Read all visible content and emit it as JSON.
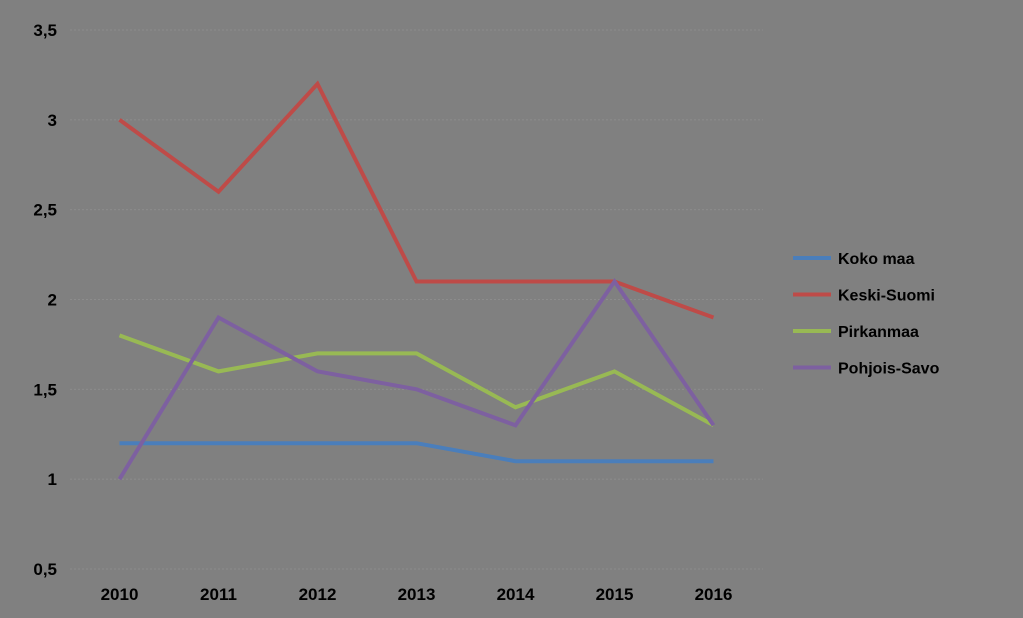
{
  "chart_data": {
    "type": "line",
    "title": "",
    "xlabel": "",
    "ylabel": "",
    "categories": [
      "2010",
      "2011",
      "2012",
      "2013",
      "2014",
      "2015",
      "2016"
    ],
    "ylim": [
      0.5,
      3.5
    ],
    "yticks": [
      {
        "value": 0.5,
        "label": "0,5"
      },
      {
        "value": 1,
        "label": "1"
      },
      {
        "value": 1.5,
        "label": "1,5"
      },
      {
        "value": 2,
        "label": "2"
      },
      {
        "value": 2.5,
        "label": "2,5"
      },
      {
        "value": 3,
        "label": "3"
      },
      {
        "value": 3.5,
        "label": "3,5"
      }
    ],
    "grid": true,
    "legend_position": "right",
    "series": [
      {
        "name": "Koko maa",
        "color": "#4a7ebb",
        "values": [
          1.2,
          1.2,
          1.2,
          1.2,
          1.1,
          1.1,
          1.1
        ]
      },
      {
        "name": "Keski-Suomi",
        "color": "#be4b48",
        "values": [
          3.0,
          2.6,
          3.2,
          2.1,
          2.1,
          2.1,
          1.9
        ]
      },
      {
        "name": "Pirkanmaa",
        "color": "#98b954",
        "values": [
          1.8,
          1.6,
          1.7,
          1.7,
          1.4,
          1.6,
          1.3
        ]
      },
      {
        "name": "Pohjois-Savo",
        "color": "#7d60a0",
        "values": [
          1.0,
          1.9,
          1.6,
          1.5,
          1.3,
          2.1,
          1.3
        ]
      }
    ]
  }
}
